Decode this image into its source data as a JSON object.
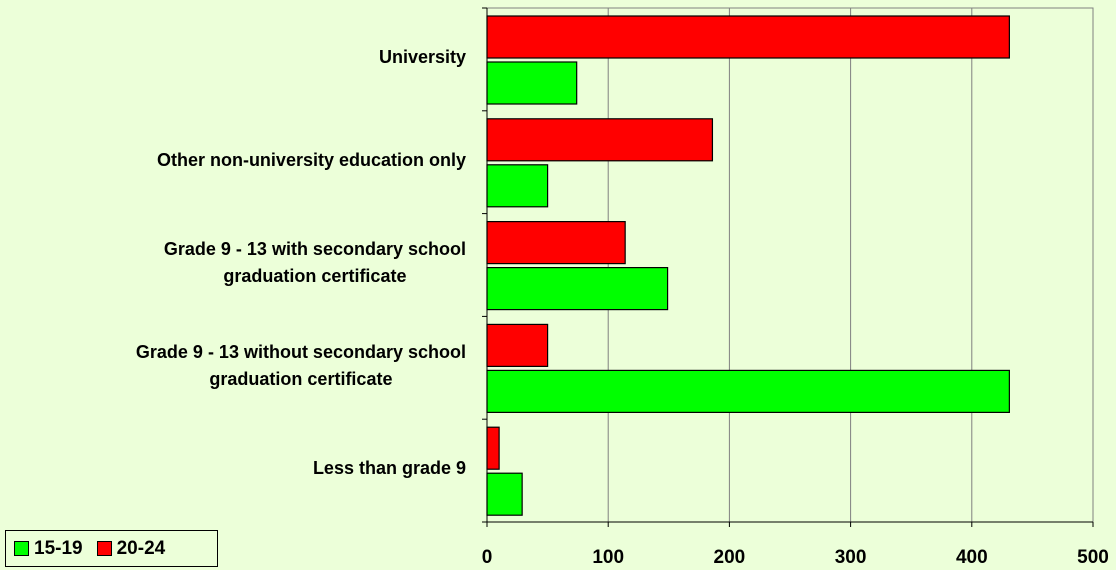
{
  "chart_data": {
    "type": "bar",
    "orientation": "horizontal",
    "categories": [
      "University",
      "Other non-university education only",
      "Grade 9 - 13 with secondary school graduation certificate",
      "Grade 9 - 13 without secondary school graduation certificate",
      "Less than grade 9"
    ],
    "category_lines": [
      [
        "University"
      ],
      [
        "Other non-university education only"
      ],
      [
        "Grade 9 - 13 with secondary school",
        "graduation certificate"
      ],
      [
        "Grade 9 - 13 without secondary school",
        "graduation certificate"
      ],
      [
        "Less than grade 9"
      ]
    ],
    "series": [
      {
        "name": "20-24",
        "color": "#ff0000",
        "values": [
          431,
          186,
          114,
          50,
          10
        ]
      },
      {
        "name": "15-19",
        "color": "#00ff00",
        "values": [
          74,
          50,
          149,
          431,
          29
        ]
      }
    ],
    "xlim": [
      0,
      500
    ],
    "x_ticks": [
      "0",
      "100",
      "200",
      "300",
      "400",
      "500"
    ],
    "grid": true,
    "legend_position": "bottom-left",
    "legend": [
      {
        "name": "15-19",
        "color": "#00ff00"
      },
      {
        "name": "20-24",
        "color": "#ff0000"
      }
    ],
    "title": "",
    "xlabel": "",
    "ylabel": ""
  }
}
